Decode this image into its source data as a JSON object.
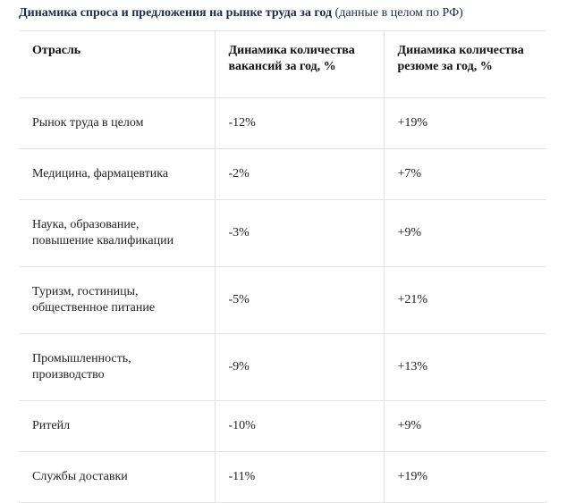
{
  "title": {
    "bold": "Динамика спроса и предложения на рынке труда за год",
    "note": "(данные в целом по РФ)"
  },
  "table": {
    "headers": [
      "Отрасль",
      "Динамика количества вакансий за год, %",
      "Динамика количества резюме за год, %"
    ],
    "rows": [
      {
        "industry": [
          "Рынок труда в целом"
        ],
        "vacancies": "-12%",
        "resumes": "+19%"
      },
      {
        "industry": [
          "Медицина, фармацевтика"
        ],
        "vacancies": "-2%",
        "resumes": "+7%"
      },
      {
        "industry": [
          "Наука, образование,",
          "повышение квалификации"
        ],
        "vacancies": "-3%",
        "resumes": "+9%"
      },
      {
        "industry": [
          "Туризм, гостиницы,",
          "общественное питание"
        ],
        "vacancies": "-5%",
        "resumes": "+21%"
      },
      {
        "industry": [
          "Промышленность,",
          "производство"
        ],
        "vacancies": "-9%",
        "resumes": "+13%"
      },
      {
        "industry": [
          "Ритейл"
        ],
        "vacancies": "-10%",
        "resumes": "+9%"
      },
      {
        "industry": [
          "Службы доставки"
        ],
        "vacancies": "-11%",
        "resumes": "+19%"
      }
    ]
  }
}
